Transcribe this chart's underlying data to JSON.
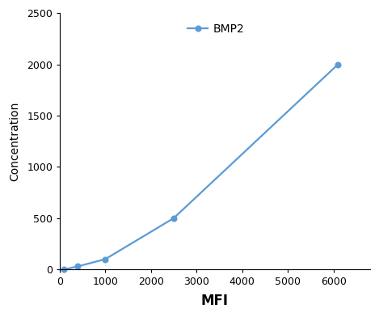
{
  "x": [
    100,
    400,
    1000,
    2500,
    6100
  ],
  "y": [
    0,
    30,
    100,
    500,
    2000
  ],
  "line_color": "#5b9bd5",
  "marker_color": "#5b9bd5",
  "marker_style": "o",
  "marker_size": 5,
  "line_width": 1.6,
  "legend_label": "BMP2",
  "xlabel": "MFI",
  "ylabel": "Concentration",
  "xlim": [
    0,
    6800
  ],
  "ylim": [
    0,
    2500
  ],
  "xticks": [
    0,
    1000,
    2000,
    3000,
    4000,
    5000,
    6000
  ],
  "yticks": [
    0,
    500,
    1000,
    1500,
    2000,
    2500
  ],
  "xlabel_fontsize": 12,
  "ylabel_fontsize": 10,
  "tick_fontsize": 9,
  "legend_fontsize": 10,
  "background_color": "#ffffff"
}
